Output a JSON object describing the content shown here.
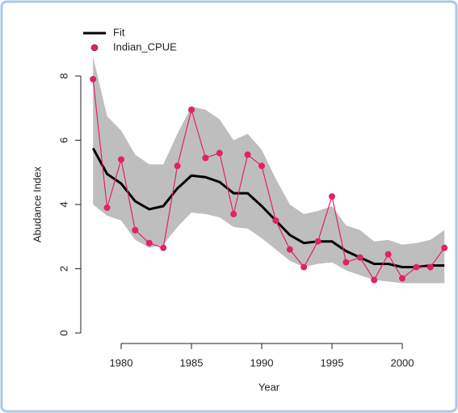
{
  "chart_data": {
    "type": "line",
    "x_label": "Year",
    "y_label": "Abudance Index",
    "x": [
      1978,
      1979,
      1980,
      1981,
      1982,
      1983,
      1984,
      1985,
      1986,
      1987,
      1988,
      1989,
      1990,
      1991,
      1992,
      1993,
      1994,
      1995,
      1996,
      1997,
      1998,
      1999,
      2000,
      2001,
      2002,
      2003
    ],
    "series": [
      {
        "name": "Fit",
        "color": "#000000",
        "style": "line",
        "values": [
          5.75,
          4.95,
          4.65,
          4.1,
          3.85,
          3.95,
          4.5,
          4.9,
          4.85,
          4.7,
          4.35,
          4.35,
          3.95,
          3.5,
          3.05,
          2.8,
          2.85,
          2.85,
          2.55,
          2.35,
          2.15,
          2.15,
          2.05,
          2.05,
          2.1,
          2.1
        ]
      },
      {
        "name": "Indian_CPUE",
        "color": "#e0245e",
        "style": "points-line",
        "values": [
          7.9,
          3.9,
          5.4,
          3.2,
          2.8,
          2.65,
          5.2,
          6.95,
          5.45,
          5.6,
          3.7,
          5.55,
          5.2,
          3.5,
          2.6,
          2.05,
          2.85,
          4.25,
          2.2,
          2.35,
          1.65,
          2.45,
          1.7,
          2.05,
          2.05,
          2.65
        ]
      }
    ],
    "band": {
      "color": "#bebebe",
      "upper": [
        8.6,
        6.75,
        6.3,
        5.55,
        5.25,
        5.25,
        6.2,
        7.05,
        6.95,
        6.65,
        6.0,
        6.2,
        5.7,
        4.8,
        4.0,
        3.7,
        3.8,
        3.95,
        3.35,
        3.2,
        2.85,
        2.9,
        2.75,
        2.8,
        2.9,
        3.2
      ],
      "lower": [
        4.0,
        3.65,
        3.5,
        2.9,
        2.65,
        2.75,
        3.3,
        3.75,
        3.7,
        3.6,
        3.3,
        3.25,
        2.95,
        2.6,
        2.25,
        2.05,
        2.15,
        2.2,
        1.95,
        1.8,
        1.65,
        1.6,
        1.55,
        1.55,
        1.55,
        1.55
      ]
    },
    "xlim": [
      1978,
      2003
    ],
    "xticks": [
      1980,
      1985,
      1990,
      1995,
      2000
    ],
    "ylim": [
      0,
      8
    ],
    "yticks": [
      0,
      2,
      4,
      6,
      8
    ],
    "legend": "top-left"
  }
}
